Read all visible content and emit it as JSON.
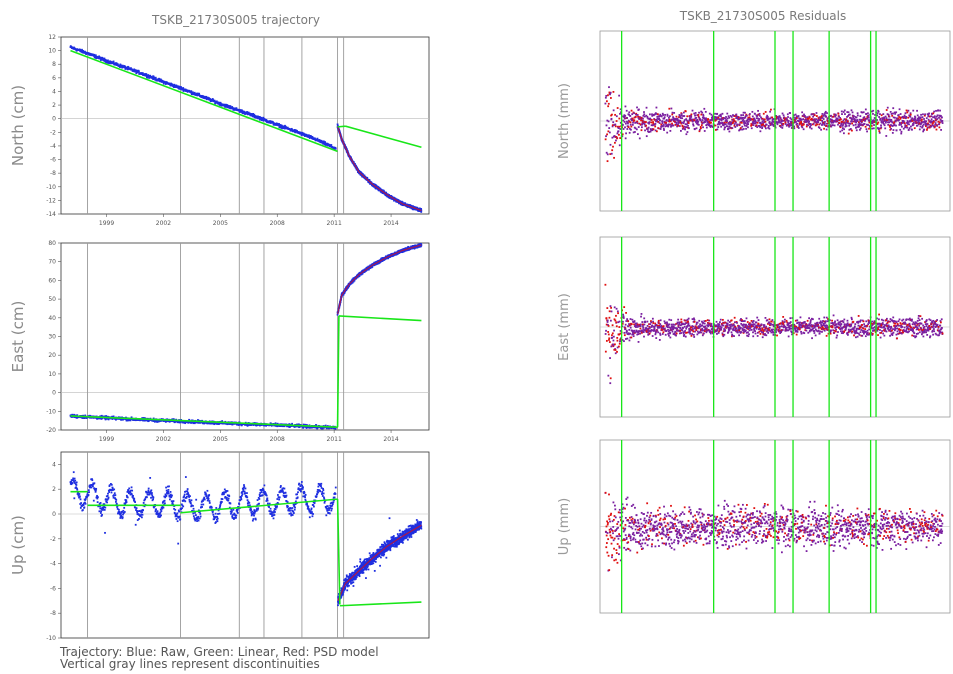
{
  "left": {
    "title": "TSKB_21730S005 trajectory",
    "footer": [
      "Trajectory: Blue: Raw, Green: Linear, Red: PSD model",
      "Vertical gray lines represent discontinuities"
    ]
  },
  "right": {
    "title": "TSKB_21730S005 Residuals"
  },
  "colors": {
    "raw": "#1f2fe0",
    "linear": "#19e619",
    "psd": "#e01010",
    "residual": "#7a1fa0",
    "discontinuity": "#9a9a9a",
    "frame": "#333333"
  },
  "chart_data": [
    {
      "type": "scatter",
      "name": "trajectory-north",
      "ylabel": "North (cm)",
      "xlim": [
        1996.6,
        2016.0
      ],
      "ylim": [
        -14,
        12
      ],
      "xticks": [
        1999,
        2002,
        2005,
        2008,
        2011,
        2014
      ],
      "xtick_labels": [
        "1999",
        "2002",
        "2005",
        "2008",
        "2011",
        "2014"
      ],
      "yticks": [
        12,
        10,
        8,
        6,
        4,
        2,
        0,
        -2,
        -4,
        -6,
        -8,
        -10,
        -12,
        -14
      ],
      "ytick_labels": [
        "12",
        "10",
        "8",
        "6",
        "4",
        "2",
        "0",
        "-2",
        "-4",
        "-6",
        "-8",
        "-10",
        "-12",
        "-14"
      ],
      "discontinuities": [
        1998.0,
        2002.9,
        2006.0,
        2007.3,
        2009.3,
        2011.18,
        2011.5
      ],
      "linear_segments": [
        {
          "x": [
            1997.1,
            2011.18
          ],
          "y": [
            10.0,
            -4.8
          ]
        },
        {
          "x": [
            2011.18,
            2011.6
          ],
          "y": [
            -1.2,
            -1.1
          ]
        },
        {
          "x": [
            2011.6,
            2015.6
          ],
          "y": [
            -1.1,
            -4.2
          ]
        }
      ],
      "series": [
        {
          "points": [
            [
              1997.1,
              10.5
            ],
            [
              1998.0,
              9.6
            ],
            [
              1999.0,
              8.5
            ],
            [
              2000.0,
              7.5
            ],
            [
              2001.0,
              6.5
            ],
            [
              2002.0,
              5.4
            ],
            [
              2003.0,
              4.4
            ],
            [
              2004.0,
              3.3
            ],
            [
              2005.0,
              2.2
            ],
            [
              2006.0,
              1.2
            ],
            [
              2007.0,
              0.2
            ],
            [
              2008.0,
              -0.9
            ],
            [
              2009.0,
              -1.9
            ],
            [
              2010.0,
              -3.0
            ],
            [
              2011.1,
              -4.4
            ]
          ]
        },
        {
          "points": [
            [
              2011.18,
              -1.1
            ],
            [
              2011.4,
              -3.0
            ],
            [
              2011.8,
              -5.5
            ],
            [
              2012.3,
              -7.8
            ],
            [
              2013.0,
              -9.6
            ],
            [
              2013.8,
              -11.2
            ],
            [
              2014.6,
              -12.5
            ],
            [
              2015.6,
              -13.5
            ]
          ]
        }
      ]
    },
    {
      "type": "scatter",
      "name": "trajectory-east",
      "ylabel": "East (cm)",
      "xlim": [
        1996.6,
        2016.0
      ],
      "ylim": [
        -20,
        80
      ],
      "xticks": [
        1999,
        2002,
        2005,
        2008,
        2011,
        2014
      ],
      "xtick_labels": [
        "1999",
        "2002",
        "2005",
        "2008",
        "2011",
        "2014"
      ],
      "yticks": [
        80,
        70,
        60,
        50,
        40,
        30,
        20,
        10,
        0,
        -10,
        -20
      ],
      "ytick_labels": [
        "80",
        "70",
        "60",
        "50",
        "40",
        "30",
        "20",
        "10",
        "0",
        "-10",
        "-20"
      ],
      "discontinuities": [
        1998.0,
        2002.9,
        2006.0,
        2007.3,
        2009.3,
        2011.18,
        2011.5
      ],
      "linear_segments": [
        {
          "x": [
            1997.1,
            2011.18
          ],
          "y": [
            -12.5,
            -18.5
          ]
        },
        {
          "x": [
            2011.18,
            2011.25
          ],
          "y": [
            -18.5,
            41.0
          ]
        },
        {
          "x": [
            2011.25,
            2015.6
          ],
          "y": [
            41.0,
            38.5
          ]
        }
      ],
      "series": [
        {
          "points": [
            [
              1997.1,
              -12.5
            ],
            [
              1999.0,
              -13.5
            ],
            [
              2001.0,
              -14.5
            ],
            [
              2003.0,
              -15.3
            ],
            [
              2005.0,
              -16.2
            ],
            [
              2007.0,
              -17.0
            ],
            [
              2009.0,
              -17.8
            ],
            [
              2011.1,
              -18.8
            ]
          ]
        },
        {
          "points": [
            [
              2011.18,
              42.0
            ],
            [
              2011.4,
              52.0
            ],
            [
              2011.8,
              58.0
            ],
            [
              2012.3,
              63.0
            ],
            [
              2013.0,
              68.0
            ],
            [
              2013.8,
              72.5
            ],
            [
              2014.6,
              76.0
            ],
            [
              2015.6,
              79.0
            ]
          ]
        }
      ]
    },
    {
      "type": "scatter",
      "name": "trajectory-up",
      "ylabel": "Up (cm)",
      "xlim": [
        1996.6,
        2016.0
      ],
      "ylim": [
        -10,
        5
      ],
      "xticks": [],
      "xtick_labels": [],
      "yticks": [
        4,
        2,
        0,
        -2,
        -4,
        -6,
        -8,
        -10
      ],
      "ytick_labels": [
        "4",
        "2",
        "0",
        "-2",
        "-4",
        "-6",
        "-8",
        "-10"
      ],
      "discontinuities": [
        1998.0,
        2002.9,
        2006.0,
        2007.3,
        2009.3,
        2011.18,
        2011.5
      ],
      "linear_segments": [
        {
          "x": [
            1997.1,
            1998.0
          ],
          "y": [
            1.8,
            1.8
          ]
        },
        {
          "x": [
            1998.0,
            2002.9
          ],
          "y": [
            0.7,
            0.7
          ]
        },
        {
          "x": [
            2002.9,
            2011.18
          ],
          "y": [
            0.1,
            1.2
          ]
        },
        {
          "x": [
            2011.18,
            2011.3
          ],
          "y": [
            1.2,
            -7.3
          ]
        },
        {
          "x": [
            2011.3,
            2015.6
          ],
          "y": [
            -7.4,
            -7.1
          ]
        }
      ],
      "series": [
        {
          "points": [
            [
              1997.1,
              1.8
            ],
            [
              1998.0,
              1.6
            ],
            [
              2000.0,
              0.8
            ],
            [
              2002.0,
              0.9
            ],
            [
              2004.0,
              0.5
            ],
            [
              2006.0,
              0.8
            ],
            [
              2008.0,
              1.0
            ],
            [
              2011.1,
              1.3
            ]
          ]
        },
        {
          "points": [
            [
              2011.2,
              -7.0
            ],
            [
              2011.6,
              -5.6
            ],
            [
              2012.3,
              -4.6
            ],
            [
              2013.0,
              -3.6
            ],
            [
              2013.8,
              -2.6
            ],
            [
              2014.6,
              -1.8
            ],
            [
              2015.6,
              -0.9
            ]
          ]
        }
      ]
    },
    {
      "type": "scatter",
      "name": "residuals-north",
      "ylabel": "North (mm)",
      "ylim": [
        -45,
        45
      ],
      "xlim": [
        1996.6,
        2016.0
      ],
      "green_lines": [
        1997.8,
        2002.9,
        2006.3,
        2007.3,
        2009.3,
        2011.6,
        2011.9
      ],
      "series": [
        {
          "envelope": [
            [
              1996.9,
              -38,
              32
            ],
            [
              1997.2,
              -30,
              25
            ],
            [
              1997.6,
              -18,
              16
            ],
            [
              1998.5,
              -10,
              9
            ],
            [
              2000.0,
              -8,
              8
            ],
            [
              2004.0,
              -7,
              7
            ],
            [
              2008.0,
              -6,
              6
            ],
            [
              2012.0,
              -8,
              8
            ],
            [
              2015.6,
              -7,
              7
            ]
          ]
        }
      ]
    },
    {
      "type": "scatter",
      "name": "residuals-east",
      "ylabel": "East (mm)",
      "ylim": [
        -45,
        45
      ],
      "xlim": [
        1996.6,
        2016.0
      ],
      "green_lines": [
        1997.8,
        2002.9,
        2006.3,
        2007.3,
        2009.3,
        2011.6,
        2011.9
      ],
      "series": [
        {
          "envelope": [
            [
              1996.9,
              -40,
              38
            ],
            [
              1997.2,
              -32,
              28
            ],
            [
              1997.6,
              -18,
              18
            ],
            [
              1998.5,
              -9,
              8
            ],
            [
              2000.0,
              -7,
              6
            ],
            [
              2004.0,
              -6,
              6
            ],
            [
              2008.0,
              -6,
              6
            ],
            [
              2012.0,
              -7,
              7
            ],
            [
              2015.6,
              -7,
              7
            ]
          ]
        }
      ]
    },
    {
      "type": "scatter",
      "name": "residuals-up",
      "ylabel": "Up (mm)",
      "ylim": [
        -45,
        45
      ],
      "xlim": [
        1996.6,
        2016.0
      ],
      "green_lines": [
        1997.8,
        2002.9,
        2006.3,
        2007.3,
        2009.3,
        2011.6,
        2011.9
      ],
      "series": [
        {
          "envelope": [
            [
              1996.9,
              -40,
              36
            ],
            [
              1997.2,
              -34,
              30
            ],
            [
              1997.6,
              -24,
              22
            ],
            [
              1998.5,
              -18,
              16
            ],
            [
              2000.0,
              -16,
              15
            ],
            [
              2004.0,
              -15,
              15
            ],
            [
              2008.0,
              -15,
              15
            ],
            [
              2012.0,
              -15,
              14
            ],
            [
              2015.6,
              -12,
              12
            ]
          ]
        }
      ]
    }
  ]
}
